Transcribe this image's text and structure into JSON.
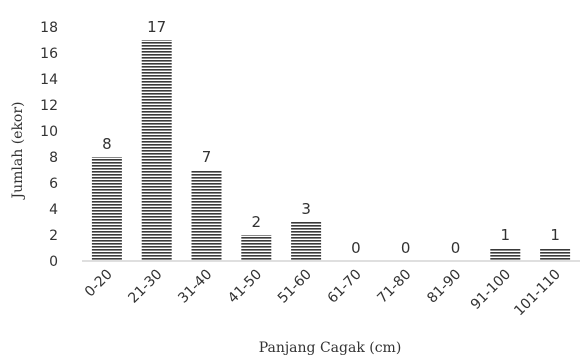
{
  "chart_data": {
    "type": "bar",
    "title": "",
    "xlabel": "Panjang Cagak (cm)",
    "ylabel": "Jumlah (ekor)",
    "categories": [
      "0-20",
      "21-30",
      "31-40",
      "41-50",
      "51-60",
      "61-70",
      "71-80",
      "81-90",
      "91-100",
      "101-110"
    ],
    "values": [
      8,
      17,
      7,
      2,
      3,
      0,
      0,
      0,
      1,
      1
    ],
    "data_labels": [
      "8",
      "17",
      "7",
      "2",
      "3",
      "0",
      "0",
      "0",
      "1",
      "1"
    ],
    "ylim": [
      0,
      18
    ],
    "yticks": [
      "0",
      "2",
      "4",
      "6",
      "8",
      "10",
      "12",
      "14",
      "16",
      "18"
    ],
    "grid": false,
    "legend": "none",
    "bar_fill": "horizontal stripes",
    "colors": {
      "bar_stripe": "#3a3a3a",
      "bar_gap": "#ffffff",
      "axis": "#bfbfbf",
      "text": "#333333"
    }
  }
}
